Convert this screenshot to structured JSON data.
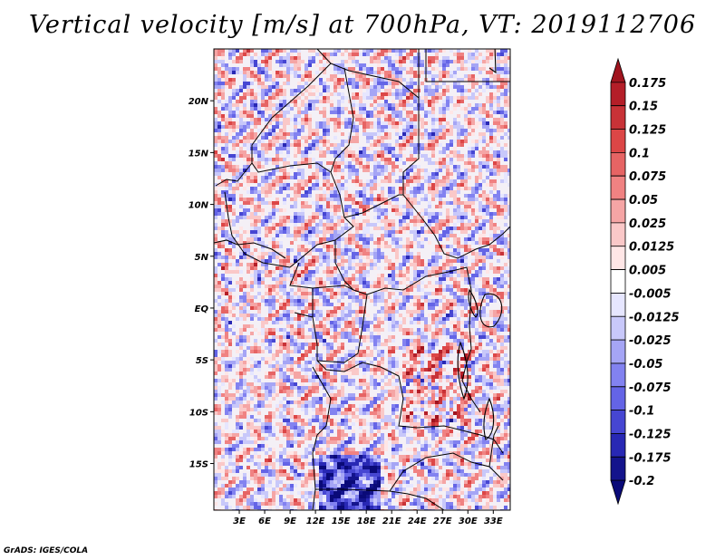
{
  "title": "Vertical velocity [m/s] at 700hPa, VT: 2019112706",
  "credit": "GrADS: IGES/COLA",
  "map": {
    "variable": "Vertical velocity",
    "units": "m/s",
    "level": "700hPa",
    "valid_time": "2019112706",
    "lon_range": [
      0,
      35
    ],
    "lat_range": [
      -19.5,
      25
    ],
    "lat_ticks": [
      {
        "value": 20,
        "label": "20N"
      },
      {
        "value": 15,
        "label": "15N"
      },
      {
        "value": 10,
        "label": "10N"
      },
      {
        "value": 5,
        "label": "5N"
      },
      {
        "value": 0,
        "label": "EQ"
      },
      {
        "value": -5,
        "label": "5S"
      },
      {
        "value": -10,
        "label": "10S"
      },
      {
        "value": -15,
        "label": "15S"
      }
    ],
    "lon_ticks": [
      {
        "value": 3,
        "label": "3E"
      },
      {
        "value": 6,
        "label": "6E"
      },
      {
        "value": 9,
        "label": "9E"
      },
      {
        "value": 12,
        "label": "12E"
      },
      {
        "value": 15,
        "label": "15E"
      },
      {
        "value": 18,
        "label": "18E"
      },
      {
        "value": 21,
        "label": "21E"
      },
      {
        "value": 24,
        "label": "24E"
      },
      {
        "value": 27,
        "label": "27E"
      },
      {
        "value": 30,
        "label": "30E"
      },
      {
        "value": 33,
        "label": "33E"
      }
    ]
  },
  "colorbar": {
    "labels": [
      "0.175",
      "0.15",
      "0.125",
      "0.1",
      "0.075",
      "0.05",
      "0.025",
      "0.0125",
      "0.005",
      "-0.005",
      "-0.0125",
      "-0.025",
      "-0.05",
      "-0.075",
      "-0.1",
      "-0.125",
      "-0.175",
      "-0.2"
    ],
    "colors": [
      "#a0141e",
      "#b41e28",
      "#c83237",
      "#dc4646",
      "#e66464",
      "#f08282",
      "#f5a5a5",
      "#fac8c8",
      "#ffe6e6",
      "#ffffff",
      "#e6e6ff",
      "#c8c8fa",
      "#a5a5f5",
      "#8282f0",
      "#6464e6",
      "#4646d2",
      "#2828b4",
      "#14148c",
      "#0a0a78"
    ]
  }
}
